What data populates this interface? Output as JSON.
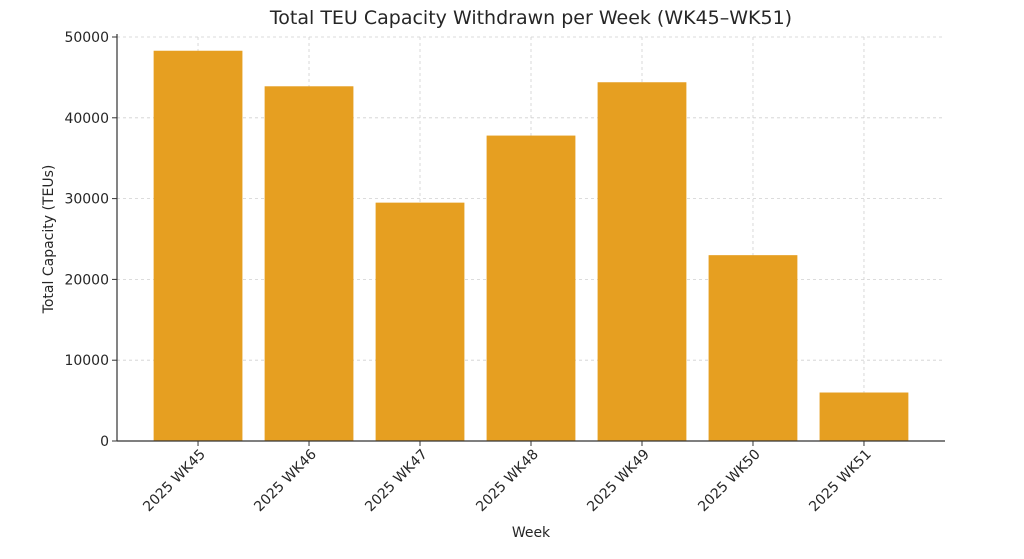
{
  "chart_data": {
    "type": "bar",
    "title": "Total TEU Capacity Withdrawn per Week (WK45–WK51)",
    "xlabel": "Week",
    "ylabel": "Total Capacity (TEUs)",
    "categories": [
      "2025 WK45",
      "2025 WK46",
      "2025 WK47",
      "2025 WK48",
      "2025 WK49",
      "2025 WK50",
      "2025 WK51"
    ],
    "values": [
      48300,
      43900,
      29500,
      37800,
      44400,
      23000,
      6000
    ],
    "ylim": [
      0,
      50000
    ],
    "yticks": [
      0,
      10000,
      20000,
      30000,
      40000,
      50000
    ],
    "ytick_labels": [
      "0",
      "10000",
      "20000",
      "30000",
      "40000",
      "50000"
    ],
    "grid": true,
    "bar_color": "#E69F21"
  }
}
